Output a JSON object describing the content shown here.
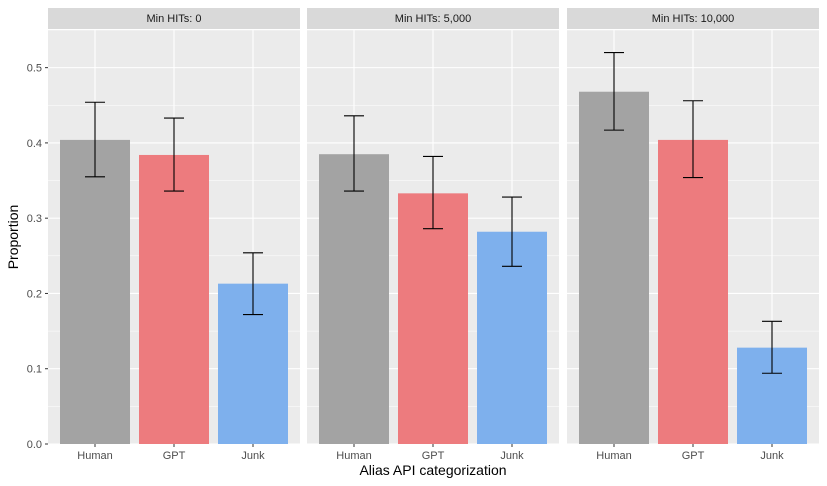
{
  "chart_data": {
    "type": "bar",
    "xlabel": "Alias API categorization",
    "ylabel": "Proportion",
    "ylim": [
      0,
      0.55
    ],
    "yticks": [
      0.0,
      0.1,
      0.2,
      0.3,
      0.4,
      0.5
    ],
    "ytick_labels": [
      "0.0",
      "0.1",
      "0.2",
      "0.3",
      "0.4",
      "0.5"
    ],
    "categories": [
      "Human",
      "GPT",
      "Junk"
    ],
    "colors": {
      "Human": "#a3a3a3",
      "GPT": "#ed7b7e",
      "Junk": "#7eb0ed",
      "panel_bg": "#ebebeb",
      "grid": "#ffffff",
      "strip_bg": "#d9d9d9"
    },
    "grid": true,
    "legend": "none",
    "panels": [
      {
        "title": "Min HITs: 0",
        "values": [
          0.404,
          0.384,
          0.213
        ],
        "error_low": [
          0.355,
          0.336,
          0.172
        ],
        "error_high": [
          0.454,
          0.433,
          0.254
        ]
      },
      {
        "title": "Min HITs: 5,000",
        "values": [
          0.385,
          0.333,
          0.282
        ],
        "error_low": [
          0.336,
          0.286,
          0.236
        ],
        "error_high": [
          0.436,
          0.382,
          0.328
        ]
      },
      {
        "title": "Min HITs: 10,000",
        "values": [
          0.468,
          0.404,
          0.128
        ],
        "error_low": [
          0.417,
          0.354,
          0.094
        ],
        "error_high": [
          0.52,
          0.456,
          0.163
        ]
      }
    ]
  }
}
